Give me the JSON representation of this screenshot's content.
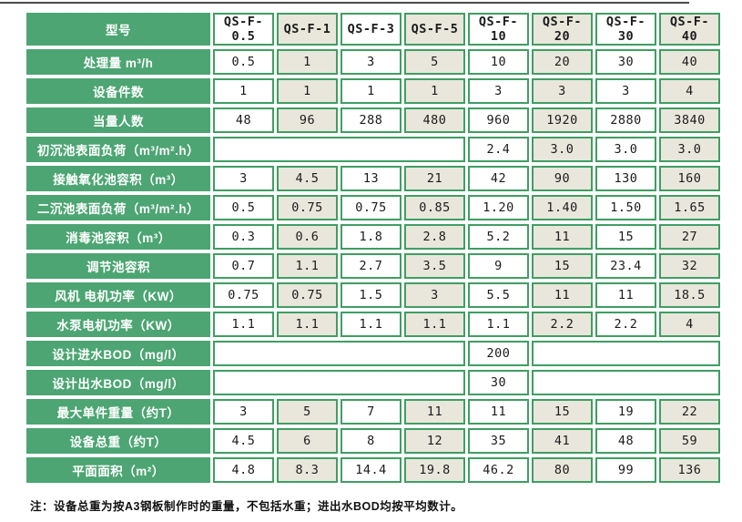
{
  "colors": {
    "header_green": "#4CA572",
    "border_green": "#3F9E63",
    "alt_column_beige": "#E9E7DC",
    "cell_text": "#1b1b1b",
    "top_line": "#4b4b4b"
  },
  "note": {
    "text": "注：设备总重为按A3钢板制作时的重量，不包括水重；进出水BOD均按平均数计。"
  },
  "table": {
    "header": {
      "label": "型号",
      "columns": [
        "QS-F-0.5",
        "QS-F-1",
        "QS-F-3",
        "QS-F-5",
        "QS-F-10",
        "QS-F-20",
        "QS-F-30",
        "QS-F-40"
      ]
    },
    "rows": [
      {
        "label": "处理量 m³/h",
        "cells": [
          {
            "t": "0.5"
          },
          {
            "t": "1"
          },
          {
            "t": "3"
          },
          {
            "t": "5"
          },
          {
            "t": "10"
          },
          {
            "t": "20"
          },
          {
            "t": "30"
          },
          {
            "t": "40"
          }
        ]
      },
      {
        "label": "设备件数",
        "cells": [
          {
            "t": "1"
          },
          {
            "t": "1"
          },
          {
            "t": "1"
          },
          {
            "t": "1"
          },
          {
            "t": "3"
          },
          {
            "t": "3"
          },
          {
            "t": "3"
          },
          {
            "t": "4"
          }
        ]
      },
      {
        "label": "当量人数",
        "cells": [
          {
            "t": "48"
          },
          {
            "t": "96"
          },
          {
            "t": "288"
          },
          {
            "t": "480"
          },
          {
            "t": "960"
          },
          {
            "t": "1920"
          },
          {
            "t": "2880"
          },
          {
            "t": "3840"
          }
        ]
      },
      {
        "label": "初沉池表面负荷（m³/m².h）",
        "cells": [
          {
            "t": "",
            "span": 4
          },
          {
            "t": "2.4"
          },
          {
            "t": "3.0"
          },
          {
            "t": "3.0"
          },
          {
            "t": "3.0"
          }
        ]
      },
      {
        "label": "接触氧化池容积（m³）",
        "cells": [
          {
            "t": "3"
          },
          {
            "t": "4.5"
          },
          {
            "t": "13"
          },
          {
            "t": "21"
          },
          {
            "t": "42"
          },
          {
            "t": "90"
          },
          {
            "t": "130"
          },
          {
            "t": "160"
          }
        ]
      },
      {
        "label": "二沉池表面负荷（m³/m².h）",
        "cells": [
          {
            "t": "0.5"
          },
          {
            "t": "0.75"
          },
          {
            "t": "0.75"
          },
          {
            "t": "0.85"
          },
          {
            "t": "1.20"
          },
          {
            "t": "1.40"
          },
          {
            "t": "1.50"
          },
          {
            "t": "1.65"
          }
        ]
      },
      {
        "label": "消毒池容积（m³）",
        "cells": [
          {
            "t": "0.3"
          },
          {
            "t": "0.6"
          },
          {
            "t": "1.8"
          },
          {
            "t": "2.8"
          },
          {
            "t": "5.2"
          },
          {
            "t": "11"
          },
          {
            "t": "15"
          },
          {
            "t": "27"
          }
        ]
      },
      {
        "label": "调节池容积",
        "cells": [
          {
            "t": "0.7"
          },
          {
            "t": "1.1"
          },
          {
            "t": "2.7"
          },
          {
            "t": "3.5"
          },
          {
            "t": "9"
          },
          {
            "t": "15"
          },
          {
            "t": "23.4"
          },
          {
            "t": "32"
          }
        ]
      },
      {
        "label": "风机 电机功率（KW）",
        "cells": [
          {
            "t": "0.75"
          },
          {
            "t": "0.75"
          },
          {
            "t": "1.5"
          },
          {
            "t": "3"
          },
          {
            "t": "5.5"
          },
          {
            "t": "11"
          },
          {
            "t": "11"
          },
          {
            "t": "18.5"
          }
        ]
      },
      {
        "label": "水泵电机功率（KW）",
        "cells": [
          {
            "t": "1.1"
          },
          {
            "t": "1.1"
          },
          {
            "t": "1.1"
          },
          {
            "t": "1.1"
          },
          {
            "t": "1.1"
          },
          {
            "t": "2.2"
          },
          {
            "t": "2.2"
          },
          {
            "t": "4"
          }
        ]
      },
      {
        "label": "设计进水BOD（mg/l）",
        "cells": [
          {
            "t": "",
            "span": 4
          },
          {
            "t": "200"
          },
          {
            "t": "",
            "span": 3
          }
        ]
      },
      {
        "label": "设计出水BOD（mg/l）",
        "cells": [
          {
            "t": "",
            "span": 4
          },
          {
            "t": "30"
          },
          {
            "t": "",
            "span": 3
          }
        ]
      },
      {
        "label": "最大单件重量（约T）",
        "cells": [
          {
            "t": "3"
          },
          {
            "t": "5"
          },
          {
            "t": "7"
          },
          {
            "t": "11"
          },
          {
            "t": "11"
          },
          {
            "t": "15"
          },
          {
            "t": "19"
          },
          {
            "t": "22"
          }
        ]
      },
      {
        "label": "设备总重（约T）",
        "cells": [
          {
            "t": "4.5"
          },
          {
            "t": "6"
          },
          {
            "t": "8"
          },
          {
            "t": "12"
          },
          {
            "t": "35"
          },
          {
            "t": "41"
          },
          {
            "t": "48"
          },
          {
            "t": "59"
          }
        ]
      },
      {
        "label": "平面面积（m²）",
        "cells": [
          {
            "t": "4.8"
          },
          {
            "t": "8.3"
          },
          {
            "t": "14.4"
          },
          {
            "t": "19.8"
          },
          {
            "t": "46.2"
          },
          {
            "t": "80"
          },
          {
            "t": "99"
          },
          {
            "t": "136"
          }
        ]
      }
    ]
  }
}
